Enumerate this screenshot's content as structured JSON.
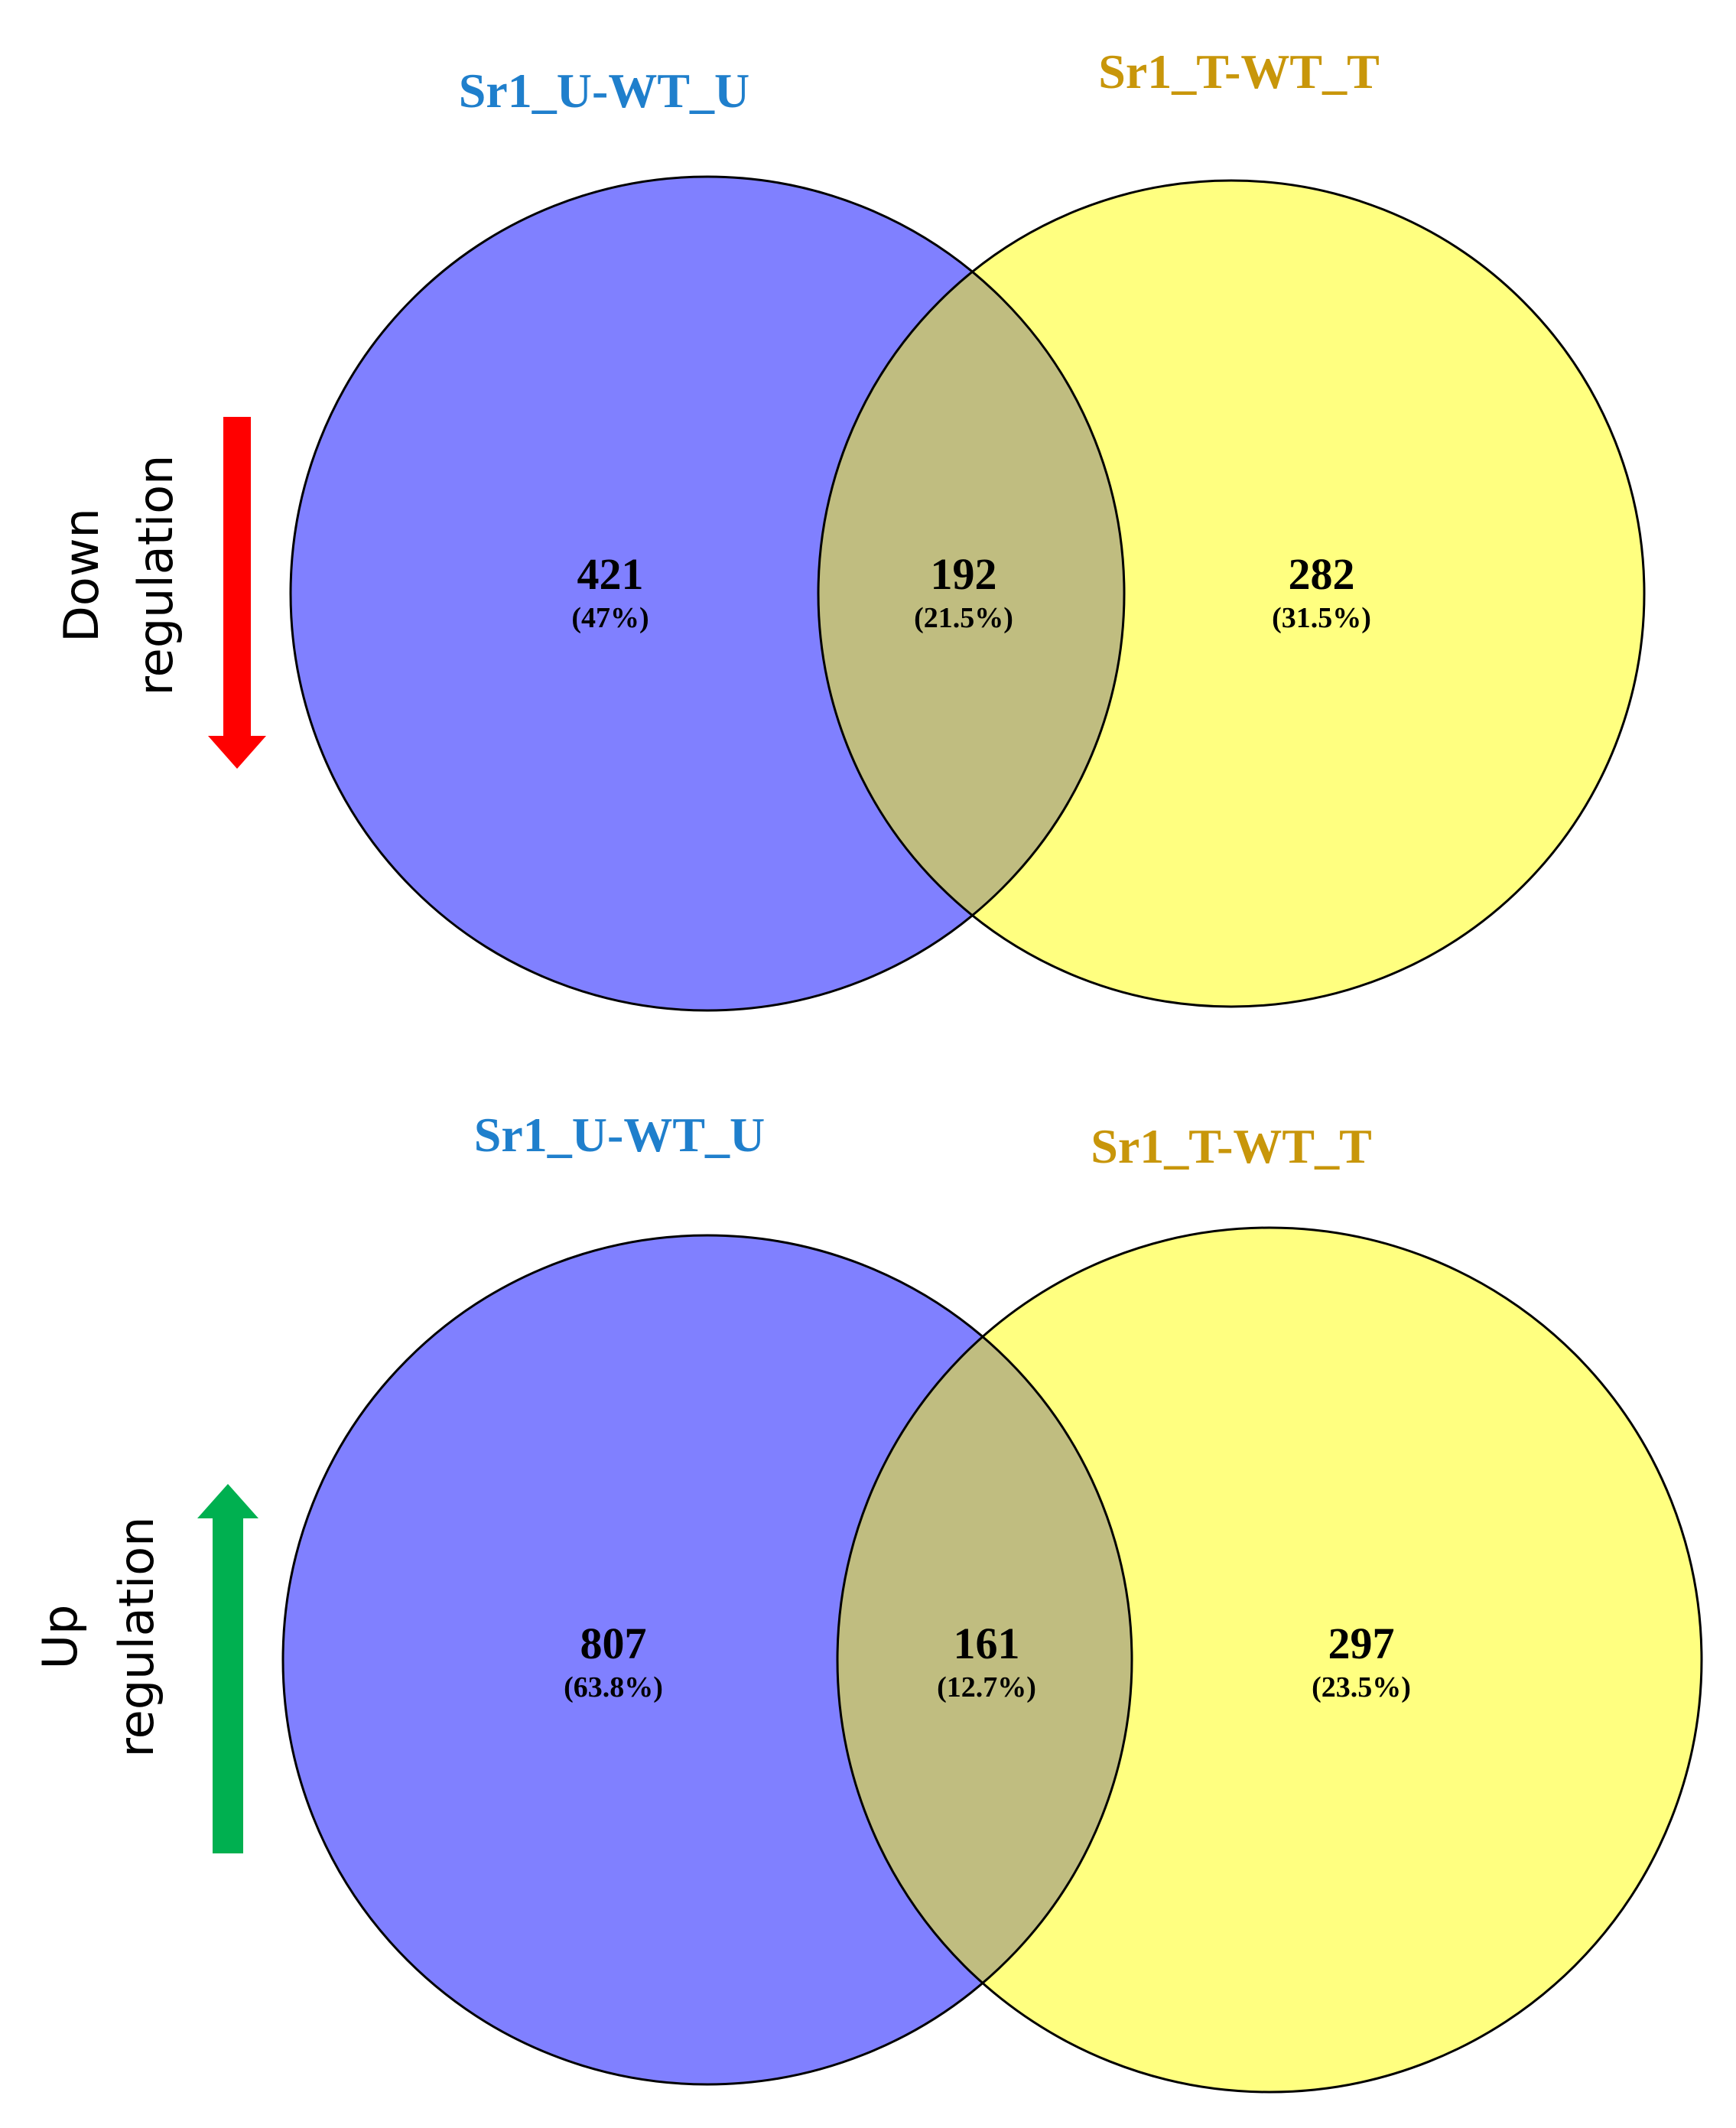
{
  "colors": {
    "set_a_fill": "#8080ff",
    "set_b_fill": "#ffff80",
    "overlap_fill": "#c0bd80",
    "set_a_label": "#1f7fcc",
    "set_b_label": "#c8960a",
    "down_arrow": "#ff0000",
    "up_arrow": "#00b050",
    "outline": "#000000"
  },
  "panels": [
    {
      "regulation_line1": "Down",
      "regulation_line2": "regulation",
      "arrow_icon": "down-arrow-icon",
      "set_a": {
        "label": "Sr1_U-WT_U",
        "count": "421",
        "percent": "(47%)"
      },
      "overlap": {
        "count": "192",
        "percent": "(21.5%)"
      },
      "set_b": {
        "label": "Sr1_T-WT_T",
        "count": "282",
        "percent": "(31.5%)"
      }
    },
    {
      "regulation_line1": "Up",
      "regulation_line2": "regulation",
      "arrow_icon": "up-arrow-icon",
      "set_a": {
        "label": "Sr1_U-WT_U",
        "count": "807",
        "percent": "(63.8%)"
      },
      "overlap": {
        "count": "161",
        "percent": "(12.7%)"
      },
      "set_b": {
        "label": "Sr1_T-WT_T",
        "count": "297",
        "percent": "(23.5%)"
      }
    }
  ]
}
